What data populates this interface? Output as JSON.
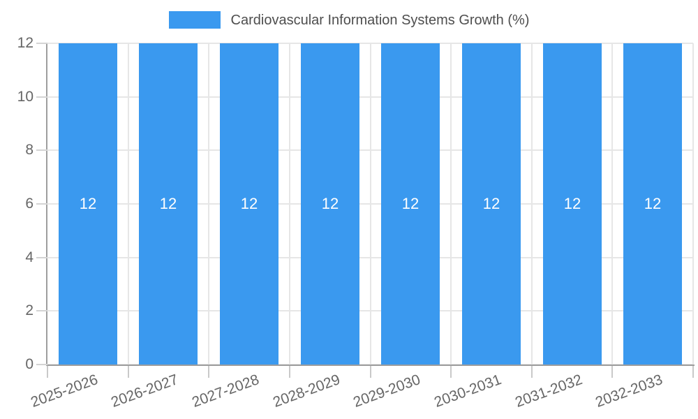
{
  "legend": {
    "label": "Cardiovascular Information Systems Growth (%)"
  },
  "colors": {
    "bar": "#3A99EF",
    "grid": "#E6E6E6",
    "axis": "#9E9E9E",
    "y_tick": "#D4D4D4",
    "x_tick": "#C9C9C9",
    "axis_text": "#666666",
    "legend_text": "#4E4E4E",
    "bar_label_text": "#FFFFFF"
  },
  "chart_data": {
    "type": "bar",
    "title": "Cardiovascular Information Systems Growth (%)",
    "categories": [
      "2025-2026",
      "2026-2027",
      "2027-2028",
      "2028-2029",
      "2029-2030",
      "2030-2031",
      "2031-2032",
      "2032-2033"
    ],
    "values": [
      12,
      12,
      12,
      12,
      12,
      12,
      12,
      12
    ],
    "bar_labels": [
      "12",
      "12",
      "12",
      "12",
      "12",
      "12",
      "12",
      "12"
    ],
    "xlabel": "",
    "ylabel": "",
    "ylim": [
      0,
      12
    ],
    "yticks": [
      0,
      2,
      4,
      6,
      8,
      10,
      12
    ],
    "grid": true,
    "legend_position": "top",
    "x_tick_rotation_deg": -20
  }
}
